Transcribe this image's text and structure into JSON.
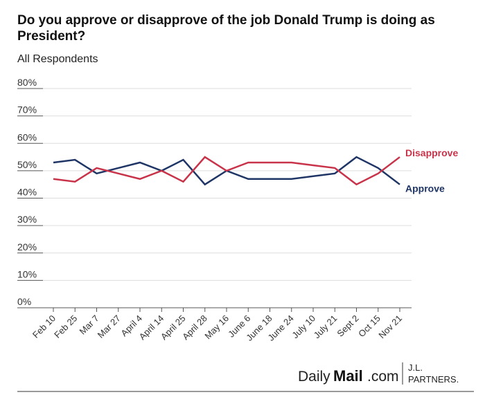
{
  "chart_data": {
    "type": "line",
    "title": "Do you approve or disapprove of the job Donald Trump is doing as President?",
    "subtitle": "All Respondents",
    "categories": [
      "Feb 10",
      "Feb 25",
      "Mar 7",
      "Mar 27",
      "April 4",
      "April 14",
      "April 25",
      "April 28",
      "May 16",
      "June 6",
      "June 18",
      "June 24",
      "July 10",
      "July 21",
      "Sept 2",
      "Oct 15",
      "Nov 21"
    ],
    "series": [
      {
        "name": "Approve",
        "color": "#1f3566",
        "values": [
          53,
          54,
          49,
          51,
          53,
          50,
          54,
          45,
          50,
          47,
          47,
          47,
          48,
          49,
          55,
          51,
          45
        ]
      },
      {
        "name": "Disapprove",
        "color": "#c8334a",
        "values": [
          47,
          46,
          51,
          49,
          47,
          50,
          46,
          55,
          50,
          53,
          53,
          53,
          52,
          51,
          45,
          49,
          55
        ]
      }
    ],
    "ylim": [
      0,
      80
    ],
    "yticks": [
      {
        "value": 0,
        "label": "0%"
      },
      {
        "value": 10,
        "label": "10%"
      },
      {
        "value": 20,
        "label": "20%"
      },
      {
        "value": 30,
        "label": "30%"
      },
      {
        "value": 40,
        "label": "40%"
      },
      {
        "value": 50,
        "label": "50%"
      },
      {
        "value": 60,
        "label": "60%"
      },
      {
        "value": 70,
        "label": "70%"
      },
      {
        "value": 80,
        "label": "80%"
      }
    ],
    "grid": true,
    "footer": {
      "brand_daily": "Daily",
      "brand_mail": "Mail",
      "brand_com": ".com",
      "partner_line1": "J.L.",
      "partner_line2": "PARTNERS."
    }
  }
}
